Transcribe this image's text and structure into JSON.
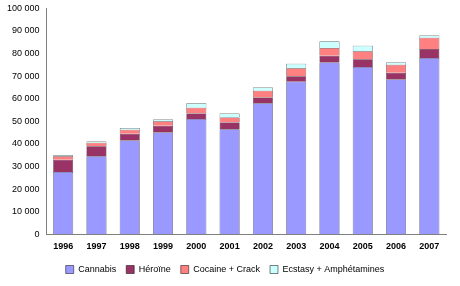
{
  "chart_data": {
    "type": "bar",
    "stacked": true,
    "grid": false,
    "legend": "bottom",
    "categories": [
      "1996",
      "1997",
      "1998",
      "1999",
      "2000",
      "2001",
      "2002",
      "2003",
      "2004",
      "2005",
      "2006",
      "2007"
    ],
    "series": [
      {
        "name": "Cannabis",
        "color": "#9999ff",
        "values": [
          27500,
          34500,
          41500,
          45000,
          51000,
          46500,
          58000,
          67500,
          76000,
          74000,
          68500,
          78000
        ]
      },
      {
        "name": "Héroïne",
        "color": "#993366",
        "values": [
          5500,
          4500,
          3000,
          3000,
          2500,
          3000,
          2500,
          2500,
          3000,
          3500,
          3000,
          4000
        ]
      },
      {
        "name": "Cocaine + Crack",
        "color": "#ff8080",
        "values": [
          1500,
          1500,
          1800,
          2000,
          2500,
          2200,
          3000,
          3500,
          3500,
          3500,
          3500,
          5000
        ]
      },
      {
        "name": "Ecstasy + Amphétamines",
        "color": "#ccffff",
        "values": [
          500,
          500,
          700,
          800,
          2000,
          1800,
          1500,
          2000,
          3000,
          2500,
          1000,
          1000
        ]
      }
    ],
    "ylim": [
      0,
      100000
    ],
    "yticks": [
      0,
      {
        "value": 10000,
        "label": "10 000"
      },
      {
        "value": 20000,
        "label": "20 000"
      },
      {
        "value": 30000,
        "label": "30 000"
      },
      {
        "value": 40000,
        "label": "40 000"
      },
      {
        "value": 50000,
        "label": "50 000"
      },
      {
        "value": 60000,
        "label": "60 000"
      },
      {
        "value": 70000,
        "label": "70 000"
      },
      {
        "value": 80000,
        "label": "80 000"
      },
      {
        "value": 90000,
        "label": "90 000"
      },
      {
        "value": 100000,
        "label": "100 000"
      }
    ]
  }
}
